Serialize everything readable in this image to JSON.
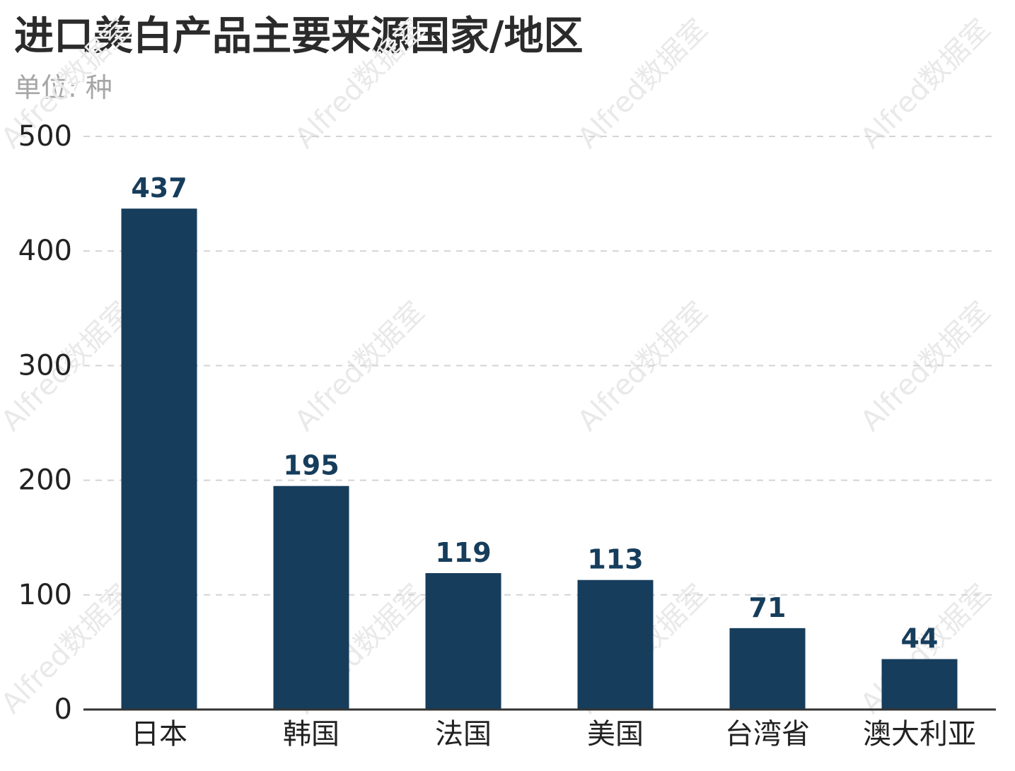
{
  "title": "进口美白产品主要来源国家/地区",
  "subtitle": "单位: 种",
  "watermark_text": "Alfred数据室",
  "colors": {
    "bar": "#163d5c",
    "data_label": "#163d5c",
    "title": "#2b2b2b",
    "subtitle": "#a6a6a6",
    "grid": "#d4d4d4",
    "axis": "#333333",
    "watermark": "#e9e9e9"
  },
  "chart_data": {
    "type": "bar",
    "title": "进口美白产品主要来源国家/地区",
    "subtitle": "单位: 种",
    "categories": [
      "日本",
      "韩国",
      "法国",
      "美国",
      "台湾省",
      "澳大利亚"
    ],
    "values": [
      437,
      195,
      119,
      113,
      71,
      44
    ],
    "data_labels": [
      "437",
      "195",
      "119",
      "113",
      "71",
      "44"
    ],
    "ylim": [
      0,
      500
    ],
    "yticks": [
      0,
      100,
      200,
      300,
      400,
      500
    ],
    "ytick_labels": [
      "0",
      "100",
      "200",
      "300",
      "400",
      "500"
    ],
    "xlabel": "",
    "ylabel": "",
    "grid": "horizontal dashed",
    "legend": "none"
  }
}
